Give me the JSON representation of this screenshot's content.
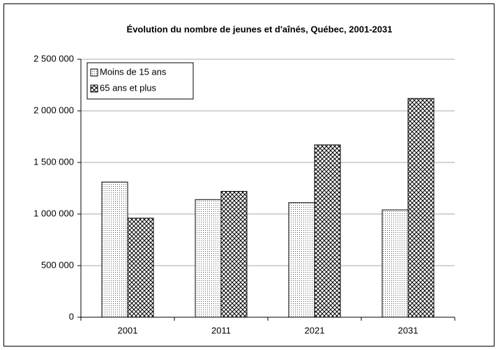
{
  "chart_data": {
    "type": "bar",
    "title": "Évolution du nombre de jeunes et d'aînés, Québec, 2001-2031",
    "categories": [
      "2001",
      "2011",
      "2021",
      "2031"
    ],
    "series": [
      {
        "name": "Moins de 15 ans",
        "color": "#000000",
        "pattern": "dots",
        "values": [
          1310000,
          1140000,
          1110000,
          1040000
        ]
      },
      {
        "name": "65 ans et plus",
        "color": "#000000",
        "pattern": "crosshatch",
        "values": [
          960000,
          1220000,
          1670000,
          2120000
        ]
      }
    ],
    "ylim": [
      0,
      2500000
    ],
    "yticks": [
      {
        "value": 0,
        "label": "0"
      },
      {
        "value": 500000,
        "label": "500 000"
      },
      {
        "value": 1000000,
        "label": "1 000 000"
      },
      {
        "value": 1500000,
        "label": "1 500 000"
      },
      {
        "value": 2000000,
        "label": "2 000 000"
      },
      {
        "value": 2500000,
        "label": "2 500 000"
      }
    ],
    "grid": true,
    "legend": "top-left"
  }
}
